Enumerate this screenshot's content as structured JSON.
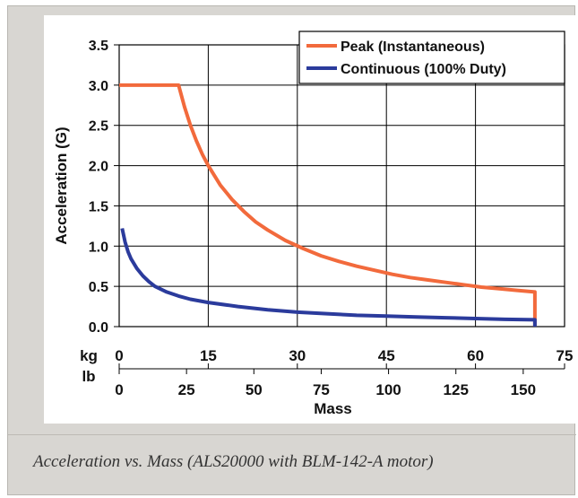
{
  "caption": "Acceleration vs. Mass (ALS20000 with BLM-142-A motor)",
  "chart_data": {
    "type": "line",
    "ylabel": "Acceleration (G)",
    "xlabel": "Mass",
    "ylim": [
      0,
      3.5
    ],
    "yticks": [
      "0.0",
      "0.5",
      "1.0",
      "1.5",
      "2.0",
      "2.5",
      "3.0",
      "3.5"
    ],
    "xlim_kg": [
      0,
      75
    ],
    "x_axes": [
      {
        "unit": "kg",
        "ticks": [
          "0",
          "15",
          "30",
          "45",
          "60",
          "75"
        ]
      },
      {
        "unit": "lb",
        "ticks": [
          "0",
          "25",
          "50",
          "75",
          "100",
          "125",
          "150"
        ]
      }
    ],
    "grid": true,
    "legend_position": "top-right",
    "series": [
      {
        "name": "Peak (Instantaneous)",
        "color": "#f26a3c",
        "x_kg": [
          0,
          10,
          11,
          12,
          13,
          14,
          15,
          17,
          19,
          21,
          23,
          25,
          28,
          31,
          34,
          37,
          40,
          43,
          46,
          49,
          52,
          55,
          58,
          61,
          64,
          67,
          70,
          70
        ],
        "y": [
          3.0,
          3.0,
          2.73,
          2.5,
          2.31,
          2.14,
          2.0,
          1.76,
          1.58,
          1.43,
          1.3,
          1.2,
          1.07,
          0.97,
          0.88,
          0.81,
          0.75,
          0.7,
          0.65,
          0.61,
          0.58,
          0.55,
          0.52,
          0.49,
          0.47,
          0.45,
          0.43,
          0.0
        ]
      },
      {
        "name": "Continuous (100% Duty)",
        "color": "#2b3b9c",
        "x_kg": [
          0.5,
          1,
          1.5,
          2,
          3,
          4,
          5,
          6,
          8,
          10,
          12,
          15,
          20,
          25,
          30,
          35,
          40,
          45,
          50,
          55,
          60,
          65,
          70,
          70
        ],
        "y": [
          1.22,
          1.05,
          0.93,
          0.84,
          0.72,
          0.63,
          0.56,
          0.5,
          0.43,
          0.38,
          0.34,
          0.3,
          0.25,
          0.21,
          0.18,
          0.16,
          0.14,
          0.13,
          0.12,
          0.11,
          0.1,
          0.09,
          0.085,
          0.0
        ]
      }
    ]
  }
}
